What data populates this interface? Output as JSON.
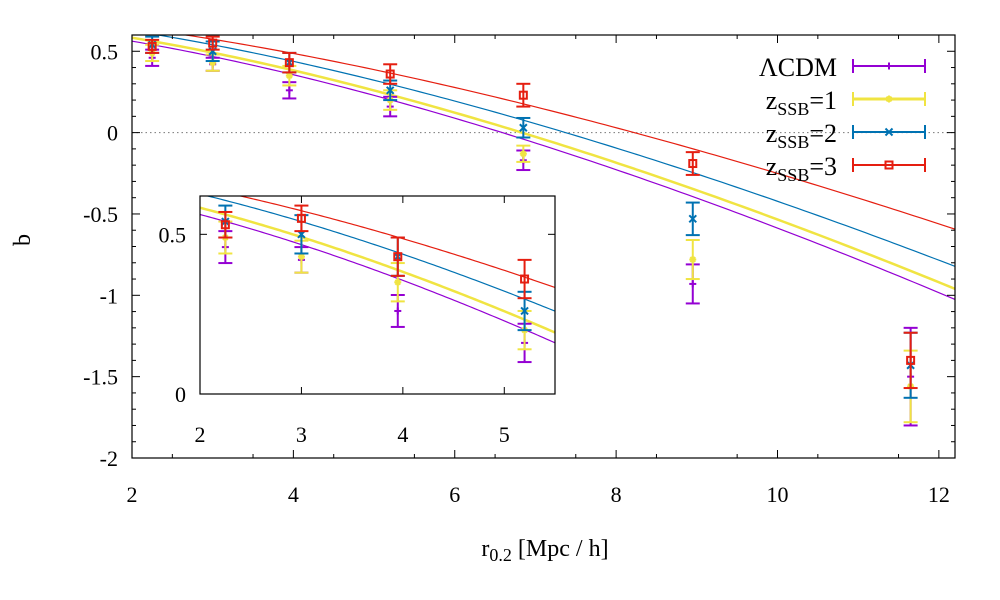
{
  "chart_data": {
    "type": "scatter",
    "xlabel": "r",
    "xlabel_sub": "0.2",
    "xlabel_units": " [Mpc / h]",
    "ylabel": "b",
    "xlim": [
      2,
      12.2
    ],
    "ylim": [
      -2,
      0.6
    ],
    "xticks": [
      2,
      4,
      6,
      8,
      10,
      12
    ],
    "xtick_labels": [
      "2",
      "4",
      "6",
      "8",
      "10",
      "12"
    ],
    "yticks": [
      0.5,
      0,
      -0.5,
      -1,
      -1.5,
      -2
    ],
    "ytick_labels": [
      "0.5",
      "0",
      "-0.5",
      "-1",
      "-1.5",
      "-2"
    ],
    "zero_line": true,
    "legend_position": "top-right",
    "series": [
      {
        "name": "ΛCDM",
        "legend_label": "ΛCDM",
        "legend_sub": "",
        "legend_suffix": "",
        "color": "#9400d3",
        "marker": "plus",
        "points": [
          {
            "x": 2.25,
            "y": 0.46,
            "err": 0.05
          },
          {
            "x": 3.0,
            "y": 0.42,
            "err": 0.04
          },
          {
            "x": 3.95,
            "y": 0.26,
            "err": 0.05
          },
          {
            "x": 5.2,
            "y": 0.16,
            "err": 0.06
          },
          {
            "x": 6.85,
            "y": -0.17,
            "err": 0.06
          },
          {
            "x": 8.95,
            "y": -0.93,
            "err": 0.12
          },
          {
            "x": 11.65,
            "y": -1.5,
            "err": 0.3
          }
        ],
        "fit": {
          "a": 0.675,
          "c": -0.0399,
          "p": 1.5
        }
      },
      {
        "name": "zSSB=1",
        "legend_label": "z",
        "legend_sub": "SSB",
        "legend_suffix": "=1",
        "color": "#f0e442",
        "marker": "cross",
        "points": [
          {
            "x": 2.25,
            "y": 0.49,
            "err": 0.05
          },
          {
            "x": 3.0,
            "y": 0.43,
            "err": 0.05
          },
          {
            "x": 3.95,
            "y": 0.35,
            "err": 0.06
          },
          {
            "x": 5.2,
            "y": 0.2,
            "err": 0.06
          },
          {
            "x": 6.85,
            "y": -0.13,
            "err": 0.05
          },
          {
            "x": 8.95,
            "y": -0.78,
            "err": 0.12
          },
          {
            "x": 11.65,
            "y": -1.56,
            "err": 0.22
          }
        ],
        "fit": {
          "a": 0.693,
          "c": -0.0388,
          "p": 1.5
        }
      },
      {
        "name": "zSSB=2",
        "legend_label": "z",
        "legend_sub": "SSB",
        "legend_suffix": "=2",
        "color": "#0072b2",
        "marker": "x",
        "points": [
          {
            "x": 2.25,
            "y": 0.54,
            "err": 0.05
          },
          {
            "x": 3.0,
            "y": 0.5,
            "err": 0.06
          },
          {
            "x": 3.95,
            "y": 0.43,
            "err": 0.06
          },
          {
            "x": 5.2,
            "y": 0.26,
            "err": 0.06
          },
          {
            "x": 6.85,
            "y": 0.03,
            "err": 0.06
          },
          {
            "x": 8.95,
            "y": -0.53,
            "err": 0.1
          },
          {
            "x": 11.65,
            "y": -1.43,
            "err": 0.2
          }
        ],
        "fit": {
          "a": 0.729,
          "c": -0.0364,
          "p": 1.5
        }
      },
      {
        "name": "zSSB=3",
        "legend_label": "z",
        "legend_sub": "SSB",
        "legend_suffix": "=3",
        "color": "#e51e10",
        "marker": "square",
        "points": [
          {
            "x": 2.25,
            "y": 0.53,
            "err": 0.04
          },
          {
            "x": 3.0,
            "y": 0.55,
            "err": 0.04
          },
          {
            "x": 3.95,
            "y": 0.43,
            "err": 0.06
          },
          {
            "x": 5.2,
            "y": 0.36,
            "err": 0.06
          },
          {
            "x": 6.85,
            "y": 0.23,
            "err": 0.07
          },
          {
            "x": 8.95,
            "y": -0.19,
            "err": 0.07
          },
          {
            "x": 11.65,
            "y": -1.4,
            "err": 0.17
          }
        ],
        "fit": {
          "a": 0.736,
          "c": -0.0312,
          "p": 1.5
        }
      }
    ],
    "inset": {
      "xlim": [
        2,
        5.5
      ],
      "ylim": [
        0,
        0.62
      ],
      "xticks": [
        2,
        3,
        4,
        5
      ],
      "xtick_labels": [
        "2",
        "3",
        "4",
        "5"
      ],
      "yticks": [
        0,
        0.5
      ],
      "ytick_labels": [
        "0",
        "0.5"
      ]
    }
  }
}
